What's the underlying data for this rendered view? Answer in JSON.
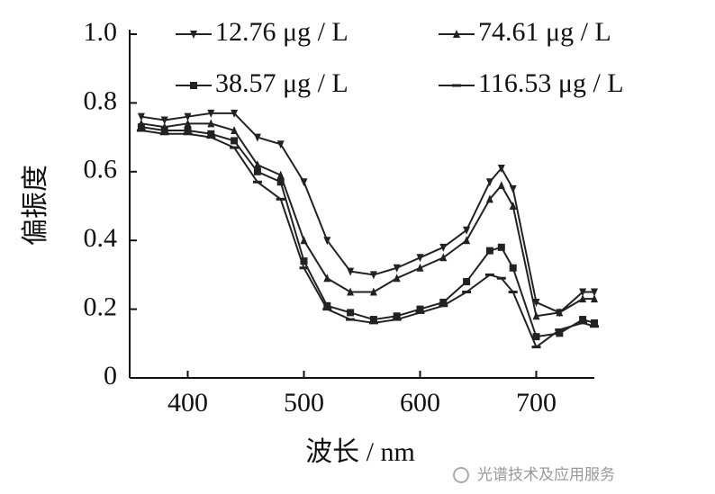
{
  "chart_data": {
    "type": "line",
    "y_label": "偏振度",
    "x_label": "波长 / nm",
    "watermark": "光谱技术及应用服务",
    "x": [
      360,
      380,
      400,
      420,
      440,
      460,
      480,
      500,
      520,
      540,
      560,
      580,
      600,
      620,
      640,
      660,
      670,
      680,
      700,
      720,
      740,
      750
    ],
    "series": [
      {
        "name": "12.76 μg / L",
        "color": "#222222",
        "marker": "triangle-down",
        "values": [
          0.76,
          0.75,
          0.76,
          0.77,
          0.77,
          0.7,
          0.68,
          0.57,
          0.4,
          0.31,
          0.3,
          0.32,
          0.35,
          0.38,
          0.43,
          0.57,
          0.61,
          0.55,
          0.22,
          0.19,
          0.25,
          0.25
        ]
      },
      {
        "name": "74.61 μg / L",
        "color": "#222222",
        "marker": "triangle-up",
        "values": [
          0.74,
          0.73,
          0.74,
          0.74,
          0.72,
          0.62,
          0.59,
          0.4,
          0.29,
          0.25,
          0.25,
          0.29,
          0.32,
          0.35,
          0.4,
          0.52,
          0.56,
          0.5,
          0.18,
          0.19,
          0.23,
          0.23
        ]
      },
      {
        "name": "38.57 μg / L",
        "color": "#222222",
        "marker": "square",
        "values": [
          0.73,
          0.72,
          0.72,
          0.71,
          0.69,
          0.6,
          0.57,
          0.34,
          0.21,
          0.19,
          0.17,
          0.18,
          0.2,
          0.22,
          0.28,
          0.37,
          0.38,
          0.32,
          0.12,
          0.13,
          0.17,
          0.16
        ]
      },
      {
        "name": "116.53 μg / L",
        "color": "#222222",
        "marker": "dash",
        "values": [
          0.72,
          0.71,
          0.71,
          0.7,
          0.67,
          0.57,
          0.52,
          0.32,
          0.2,
          0.17,
          0.16,
          0.17,
          0.19,
          0.21,
          0.25,
          0.3,
          0.29,
          0.25,
          0.09,
          0.14,
          0.16,
          0.15
        ]
      }
    ],
    "xlim": [
      350,
      750
    ],
    "ylim": [
      0,
      1
    ],
    "xticks": [
      400,
      500,
      600,
      700
    ],
    "yticks": [
      0,
      0.2,
      0.4,
      0.6,
      0.8,
      {
        "value": 1,
        "label": "1.0"
      }
    ]
  }
}
